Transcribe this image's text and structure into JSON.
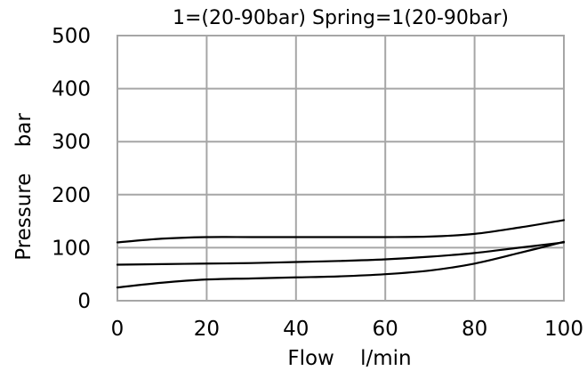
{
  "chart_data": {
    "type": "line",
    "title": "1=(20-90bar)  Spring=1(20-90bar)",
    "xlabel": "Flow    l/min",
    "ylabel": "Pressure    bar",
    "xlim": [
      0,
      100
    ],
    "ylim": [
      0,
      500
    ],
    "xticks": [
      "0",
      "20",
      "40",
      "60",
      "80",
      "100"
    ],
    "yticks": [
      "0",
      "100",
      "200",
      "300",
      "400",
      "500"
    ],
    "grid": true,
    "line_color": "#000000",
    "grid_color": "#a6a6a6",
    "series": [
      {
        "x": [
          0,
          10,
          20,
          30,
          40,
          50,
          60,
          70,
          80,
          90,
          100
        ],
        "values": [
          110,
          117,
          120,
          120,
          120,
          120,
          120,
          121,
          126,
          138,
          152
        ]
      },
      {
        "x": [
          0,
          10,
          20,
          30,
          40,
          50,
          60,
          70,
          80,
          90,
          100
        ],
        "values": [
          68,
          69,
          70,
          71,
          73,
          75,
          78,
          83,
          90,
          100,
          110
        ]
      },
      {
        "x": [
          0,
          10,
          20,
          30,
          40,
          50,
          60,
          70,
          80,
          90,
          100
        ],
        "values": [
          25,
          34,
          40,
          42,
          44,
          46,
          50,
          57,
          70,
          90,
          111
        ]
      }
    ]
  }
}
